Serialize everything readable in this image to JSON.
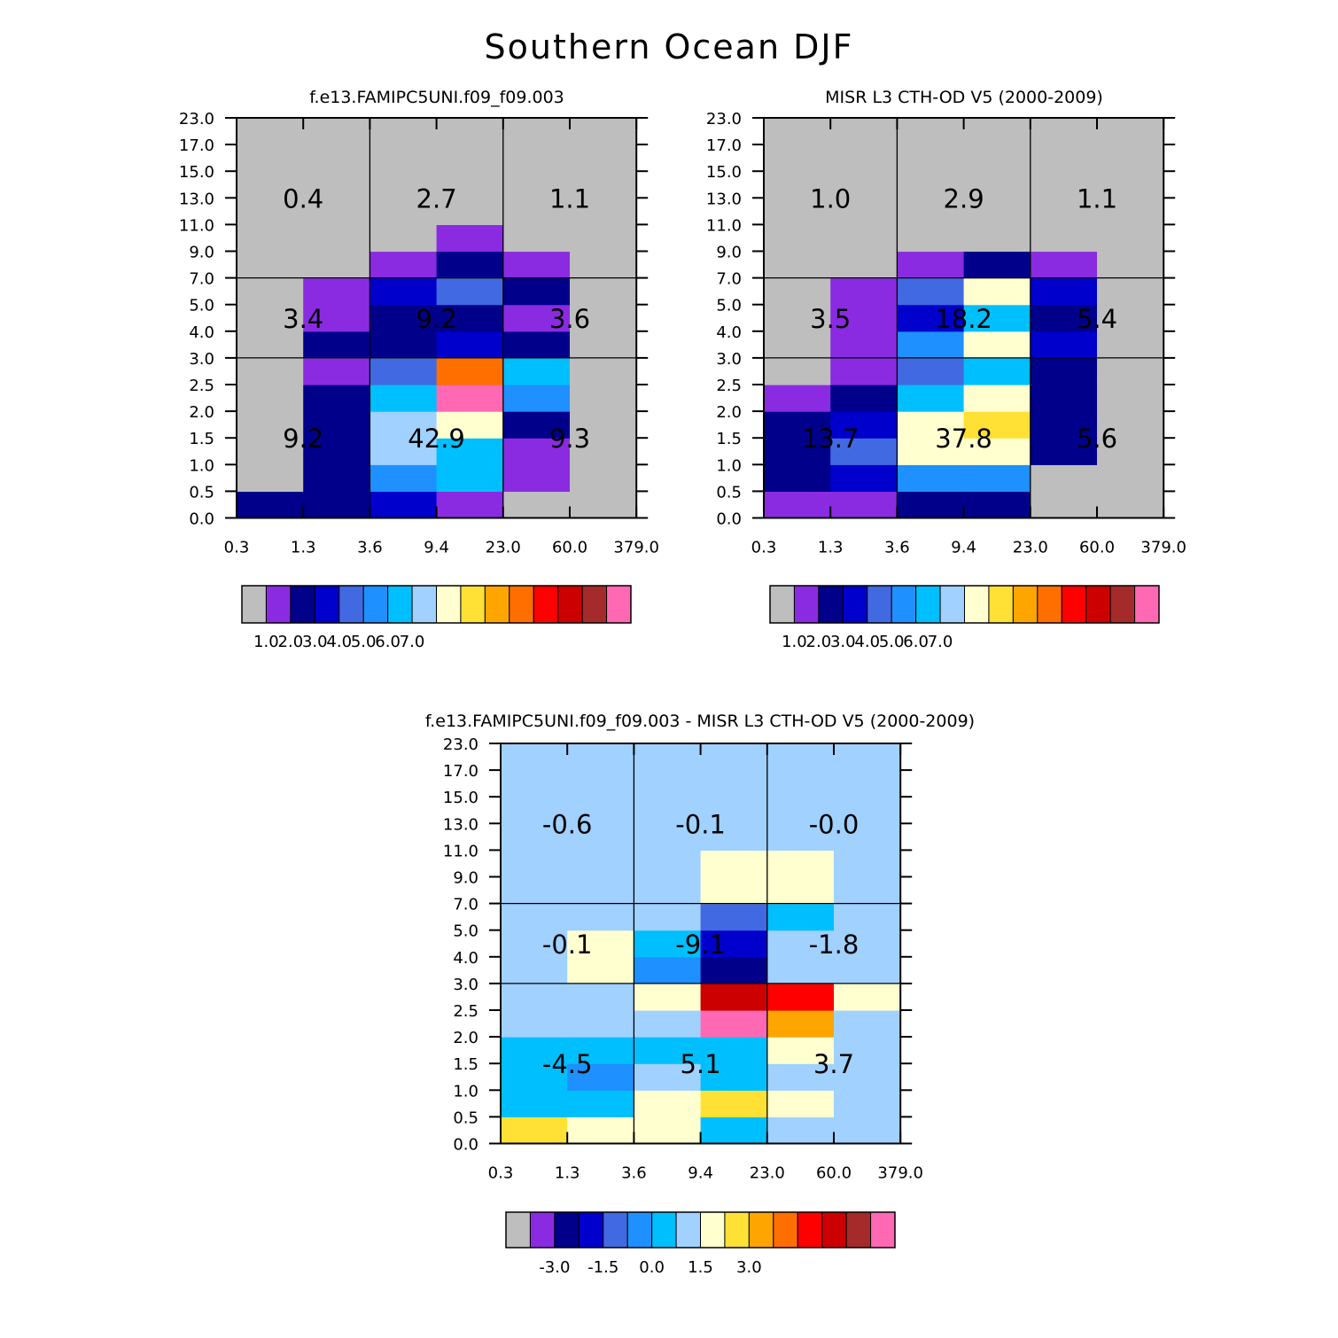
{
  "title": "Southern Ocean DJF",
  "colors": {
    "grey": "#bebebe",
    "purple": "#8a2be2",
    "navy": "#00008b",
    "blue": "#0000cd",
    "royal": "#4169e1",
    "dodger": "#1e90ff",
    "sky": "#00bfff",
    "lightsky": "#a0d1ff",
    "cream": "#ffffd0",
    "yellow": "#ffe135",
    "orange": "#ffa500",
    "darkorange": "#ff6f00",
    "red": "#ff0000",
    "darkred": "#cd0000",
    "brown": "#a52a2a",
    "pink": "#ff69b4"
  },
  "chart_data": [
    {
      "type": "heatmap",
      "title": "f.e13.FAMIPC5UNI.f09_f09.003",
      "x_ticks": [
        "0.3",
        "1.3",
        "3.6",
        "9.4",
        "23.0",
        "60.0",
        "379.0"
      ],
      "y_ticks": [
        "0.0",
        "0.5",
        "1.0",
        "1.5",
        "2.0",
        "2.5",
        "3.0",
        "4.0",
        "5.0",
        "7.0",
        "9.0",
        "11.0",
        "13.0",
        "15.0",
        "17.0",
        "23.0"
      ],
      "cell_colors": [
        [
          "navy",
          "navy",
          "blue",
          "purple",
          "grey",
          "grey"
        ],
        [
          "grey",
          "navy",
          "dodger",
          "sky",
          "purple",
          "grey"
        ],
        [
          "grey",
          "navy",
          "lightsky",
          "sky",
          "purple",
          "grey"
        ],
        [
          "grey",
          "navy",
          "lightsky",
          "cream",
          "navy",
          "grey"
        ],
        [
          "grey",
          "navy",
          "sky",
          "pink",
          "dodger",
          "grey"
        ],
        [
          "grey",
          "purple",
          "royal",
          "darkorange",
          "sky",
          "grey"
        ],
        [
          "grey",
          "navy",
          "navy",
          "blue",
          "navy",
          "grey"
        ],
        [
          "grey",
          "purple",
          "navy",
          "navy",
          "purple",
          "grey"
        ],
        [
          "grey",
          "purple",
          "blue",
          "royal",
          "navy",
          "grey"
        ],
        [
          "grey",
          "grey",
          "purple",
          "navy",
          "purple",
          "grey"
        ],
        [
          "grey",
          "grey",
          "grey",
          "purple",
          "grey",
          "grey"
        ],
        [
          "grey",
          "grey",
          "grey",
          "grey",
          "grey",
          "grey"
        ],
        [
          "grey",
          "grey",
          "grey",
          "grey",
          "grey",
          "grey"
        ],
        [
          "grey",
          "grey",
          "grey",
          "grey",
          "grey",
          "grey"
        ],
        [
          "grey",
          "grey",
          "grey",
          "grey",
          "grey",
          "grey"
        ]
      ],
      "totals": [
        [
          "9.2",
          "42.9",
          "9.3"
        ],
        [
          "3.4",
          "9.2",
          "3.6"
        ],
        [
          "0.4",
          "2.7",
          "1.1"
        ]
      ],
      "colorbar": {
        "colors": [
          "grey",
          "purple",
          "navy",
          "blue",
          "royal",
          "dodger",
          "sky",
          "lightsky",
          "cream",
          "yellow",
          "orange",
          "darkorange",
          "red",
          "darkred",
          "brown",
          "pink"
        ],
        "labels": [
          "1.0",
          "2.0",
          "3.0",
          "4.0",
          "5.0",
          "6.0",
          "7.0"
        ]
      }
    },
    {
      "type": "heatmap",
      "title": "MISR L3 CTH-OD V5 (2000-2009)",
      "x_ticks": [
        "0.3",
        "1.3",
        "3.6",
        "9.4",
        "23.0",
        "60.0",
        "379.0"
      ],
      "y_ticks": [
        "0.0",
        "0.5",
        "1.0",
        "1.5",
        "2.0",
        "2.5",
        "3.0",
        "4.0",
        "5.0",
        "7.0",
        "9.0",
        "11.0",
        "13.0",
        "15.0",
        "17.0",
        "23.0"
      ],
      "cell_colors": [
        [
          "purple",
          "purple",
          "navy",
          "navy",
          "grey",
          "grey"
        ],
        [
          "navy",
          "blue",
          "dodger",
          "dodger",
          "grey",
          "grey"
        ],
        [
          "navy",
          "royal",
          "cream",
          "cream",
          "navy",
          "grey"
        ],
        [
          "navy",
          "blue",
          "cream",
          "yellow",
          "navy",
          "grey"
        ],
        [
          "purple",
          "navy",
          "sky",
          "cream",
          "navy",
          "grey"
        ],
        [
          "grey",
          "purple",
          "royal",
          "sky",
          "navy",
          "grey"
        ],
        [
          "grey",
          "purple",
          "dodger",
          "cream",
          "blue",
          "grey"
        ],
        [
          "grey",
          "purple",
          "blue",
          "sky",
          "navy",
          "grey"
        ],
        [
          "grey",
          "purple",
          "royal",
          "cream",
          "blue",
          "grey"
        ],
        [
          "grey",
          "grey",
          "purple",
          "navy",
          "purple",
          "grey"
        ],
        [
          "grey",
          "grey",
          "grey",
          "grey",
          "grey",
          "grey"
        ],
        [
          "grey",
          "grey",
          "grey",
          "grey",
          "grey",
          "grey"
        ],
        [
          "grey",
          "grey",
          "grey",
          "grey",
          "grey",
          "grey"
        ],
        [
          "grey",
          "grey",
          "grey",
          "grey",
          "grey",
          "grey"
        ],
        [
          "grey",
          "grey",
          "grey",
          "grey",
          "grey",
          "grey"
        ]
      ],
      "totals": [
        [
          "13.7",
          "37.8",
          "5.6"
        ],
        [
          "3.5",
          "18.2",
          "5.4"
        ],
        [
          "1.0",
          "2.9",
          "1.1"
        ]
      ],
      "colorbar": {
        "colors": [
          "grey",
          "purple",
          "navy",
          "blue",
          "royal",
          "dodger",
          "sky",
          "lightsky",
          "cream",
          "yellow",
          "orange",
          "darkorange",
          "red",
          "darkred",
          "brown",
          "pink"
        ],
        "labels": [
          "1.0",
          "2.0",
          "3.0",
          "4.0",
          "5.0",
          "6.0",
          "7.0"
        ]
      }
    },
    {
      "type": "heatmap",
      "title": "f.e13.FAMIPC5UNI.f09_f09.003 - MISR L3 CTH-OD V5 (2000-2009)",
      "x_ticks": [
        "0.3",
        "1.3",
        "3.6",
        "9.4",
        "23.0",
        "60.0",
        "379.0"
      ],
      "y_ticks": [
        "0.0",
        "0.5",
        "1.0",
        "1.5",
        "2.0",
        "2.5",
        "3.0",
        "4.0",
        "5.0",
        "7.0",
        "9.0",
        "11.0",
        "13.0",
        "15.0",
        "17.0",
        "23.0"
      ],
      "cell_colors": [
        [
          "yellow",
          "cream",
          "cream",
          "sky",
          "lightsky",
          "lightsky"
        ],
        [
          "sky",
          "sky",
          "cream",
          "yellow",
          "cream",
          "lightsky"
        ],
        [
          "sky",
          "dodger",
          "lightsky",
          "sky",
          "lightsky",
          "lightsky"
        ],
        [
          "sky",
          "sky",
          "sky",
          "sky",
          "cream",
          "lightsky"
        ],
        [
          "lightsky",
          "lightsky",
          "lightsky",
          "pink",
          "orange",
          "lightsky"
        ],
        [
          "lightsky",
          "lightsky",
          "cream",
          "darkred",
          "red",
          "cream"
        ],
        [
          "lightsky",
          "cream",
          "dodger",
          "navy",
          "lightsky",
          "lightsky"
        ],
        [
          "lightsky",
          "cream",
          "sky",
          "blue",
          "lightsky",
          "lightsky"
        ],
        [
          "lightsky",
          "lightsky",
          "lightsky",
          "royal",
          "sky",
          "lightsky"
        ],
        [
          "lightsky",
          "lightsky",
          "lightsky",
          "cream",
          "cream",
          "lightsky"
        ],
        [
          "lightsky",
          "lightsky",
          "lightsky",
          "cream",
          "cream",
          "lightsky"
        ],
        [
          "lightsky",
          "lightsky",
          "lightsky",
          "lightsky",
          "lightsky",
          "lightsky"
        ],
        [
          "lightsky",
          "lightsky",
          "lightsky",
          "lightsky",
          "lightsky",
          "lightsky"
        ],
        [
          "lightsky",
          "lightsky",
          "lightsky",
          "lightsky",
          "lightsky",
          "lightsky"
        ],
        [
          "lightsky",
          "lightsky",
          "lightsky",
          "lightsky",
          "lightsky",
          "lightsky"
        ]
      ],
      "totals": [
        [
          "-4.5",
          "5.1",
          "3.7"
        ],
        [
          "-0.1",
          "-9.1",
          "-1.8"
        ],
        [
          "-0.6",
          "-0.1",
          "-0.0"
        ]
      ],
      "colorbar": {
        "colors": [
          "grey",
          "purple",
          "navy",
          "blue",
          "royal",
          "dodger",
          "sky",
          "lightsky",
          "cream",
          "yellow",
          "orange",
          "darkorange",
          "red",
          "darkred",
          "brown",
          "pink"
        ],
        "labels": [
          "-3.0",
          "-1.5",
          "0.0",
          "1.5",
          "3.0"
        ]
      }
    }
  ]
}
